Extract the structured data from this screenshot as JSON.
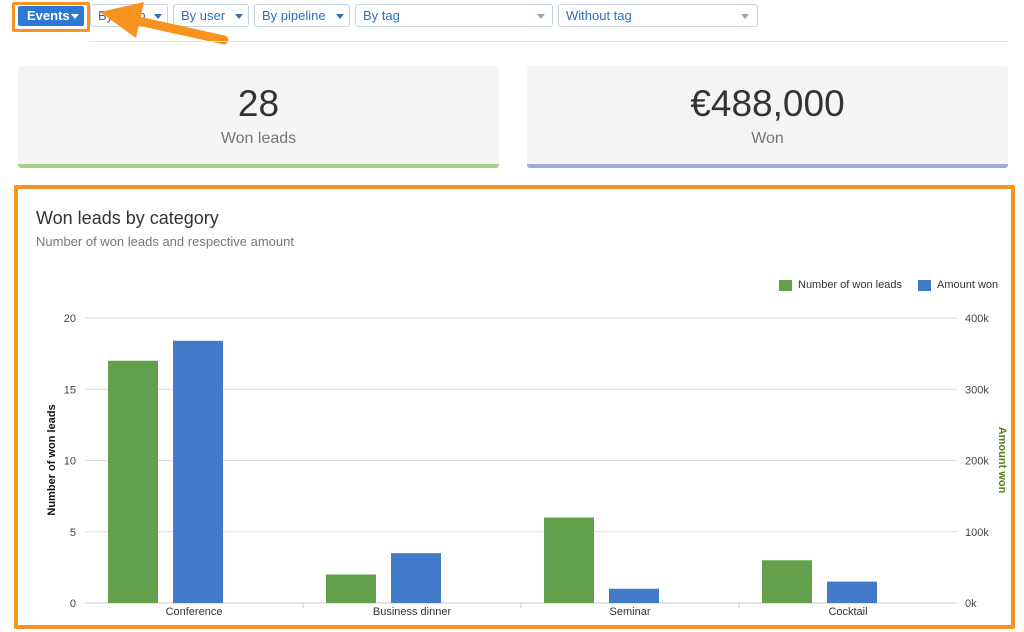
{
  "toolbar": {
    "events_label": "Events",
    "filters": [
      {
        "label": "By team"
      },
      {
        "label": "By user"
      },
      {
        "label": "By pipeline"
      }
    ],
    "tag_select": {
      "value": "By tag"
    },
    "without_tag_select": {
      "value": "Without tag"
    }
  },
  "kpis": [
    {
      "value": "28",
      "caption": "Won leads",
      "accent": "#a8d08d"
    },
    {
      "value": "€488,000",
      "caption": "Won",
      "accent": "#a3aad6"
    }
  ],
  "chart": {
    "title": "Won leads by category",
    "subtitle": "Number of won leads and respective amount"
  },
  "colors": {
    "highlight": "#f7931e",
    "primary": "#2c79d3",
    "series_green": "#62a04c",
    "series_blue": "#4379c9"
  },
  "chart_data": {
    "type": "bar",
    "categories": [
      "Conference",
      "Business dinner",
      "Seminar",
      "Cocktail"
    ],
    "series": [
      {
        "name": "Number of won leads",
        "axis": "left",
        "color": "#62a04c",
        "values": [
          17,
          2,
          6,
          3
        ]
      },
      {
        "name": "Amount won",
        "axis": "right",
        "color": "#4379c9",
        "values": [
          368000,
          70000,
          20000,
          30000
        ]
      }
    ],
    "ylabel": "Number of won leads",
    "ylim": [
      0,
      20
    ],
    "yticks": [
      "0",
      "5",
      "10",
      "15",
      "20"
    ],
    "y2label": "Amount won",
    "y2lim": [
      0,
      400000
    ],
    "y2ticks": [
      "0k",
      "100k",
      "200k",
      "300k",
      "400k"
    ],
    "grid": true,
    "legend": "top-right"
  }
}
